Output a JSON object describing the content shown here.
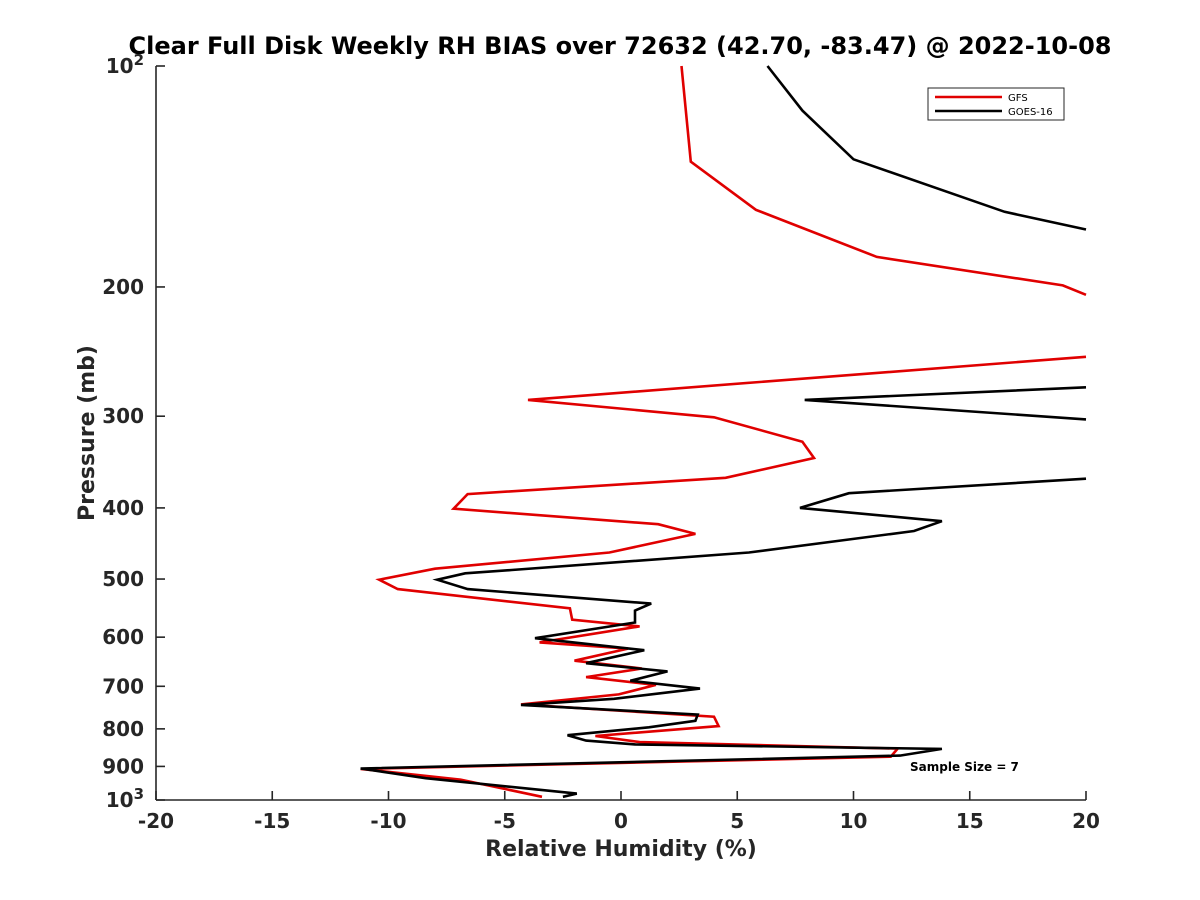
{
  "chart_data": {
    "type": "line",
    "title": "Clear Full Disk Weekly RH BIAS over 72632 (42.70, -83.47) @ 2022-10-08",
    "xlabel": "Relative Humidity (%)",
    "ylabel": "Pressure (mb)",
    "xlim": [
      -20,
      20
    ],
    "ylim": [
      100,
      1000
    ],
    "yscale": "log",
    "y_reversed": true,
    "grid": false,
    "legend_position": "top-right",
    "x_ticks": [
      "-20",
      "-15",
      "-10",
      "-5",
      "0",
      "5",
      "10",
      "15",
      "20"
    ],
    "y_ticks": [
      {
        "value": 100,
        "base": "10",
        "exp": "2"
      },
      {
        "value": 200,
        "label": "200"
      },
      {
        "value": 300,
        "label": "300"
      },
      {
        "value": 400,
        "label": "400"
      },
      {
        "value": 500,
        "label": "500"
      },
      {
        "value": 600,
        "label": "600"
      },
      {
        "value": 700,
        "label": "700"
      },
      {
        "value": 800,
        "label": "800"
      },
      {
        "value": 900,
        "label": "900"
      },
      {
        "value": 1000,
        "base": "10",
        "exp": "3"
      }
    ],
    "series": [
      {
        "name": "GFS",
        "color": "#e00000",
        "points": [
          [
            2.6,
            100
          ],
          [
            3.0,
            135
          ],
          [
            5.8,
            157
          ],
          [
            11.0,
            182
          ],
          [
            19.0,
            199
          ],
          [
            20.0,
            205
          ],
          [
            null,
            null
          ],
          [
            20.0,
            249
          ],
          [
            -4.0,
            285
          ],
          [
            4.0,
            301
          ],
          [
            7.8,
            325
          ],
          [
            8.3,
            342
          ],
          [
            4.5,
            364
          ],
          [
            -6.6,
            383
          ],
          [
            -7.2,
            401
          ],
          [
            1.6,
            421
          ],
          [
            3.2,
            434
          ],
          [
            -0.5,
            460
          ],
          [
            -8.0,
            484
          ],
          [
            -10.4,
            501
          ],
          [
            -9.6,
            516
          ],
          [
            -2.2,
            548
          ],
          [
            -2.1,
            568
          ],
          [
            0.8,
            580
          ],
          [
            -3.5,
            610
          ],
          [
            0.3,
            622
          ],
          [
            -2.0,
            646
          ],
          [
            0.9,
            662
          ],
          [
            -1.5,
            680
          ],
          [
            1.5,
            697
          ],
          [
            -0.1,
            718
          ],
          [
            -4.3,
            741
          ],
          [
            4.0,
            770
          ],
          [
            4.2,
            793
          ],
          [
            -1.1,
            818
          ],
          [
            0.8,
            834
          ],
          [
            11.9,
            851
          ],
          [
            11.6,
            873
          ],
          [
            -11.2,
            907
          ],
          [
            -6.9,
            938
          ],
          [
            -3.4,
            990
          ]
        ]
      },
      {
        "name": "GOES-16",
        "color": "#000000",
        "points": [
          [
            6.3,
            100
          ],
          [
            7.8,
            115
          ],
          [
            10.0,
            134
          ],
          [
            16.5,
            158
          ],
          [
            20.0,
            167
          ],
          [
            null,
            null
          ],
          [
            20.0,
            274
          ],
          [
            7.9,
            285
          ],
          [
            20.0,
            303
          ],
          [
            null,
            null
          ],
          [
            20.0,
            365
          ],
          [
            9.8,
            382
          ],
          [
            7.7,
            400
          ],
          [
            13.8,
            417
          ],
          [
            12.6,
            430
          ],
          [
            5.5,
            460
          ],
          [
            -4.7,
            486
          ],
          [
            -6.7,
            491
          ],
          [
            -7.9,
            501
          ],
          [
            -6.6,
            516
          ],
          [
            1.3,
            540
          ],
          [
            0.6,
            552
          ],
          [
            0.6,
            573
          ],
          [
            -3.7,
            602
          ],
          [
            1.0,
            625
          ],
          [
            -1.5,
            651
          ],
          [
            2.0,
            668
          ],
          [
            0.4,
            688
          ],
          [
            3.4,
            705
          ],
          [
            -0.3,
            728
          ],
          [
            -4.3,
            742
          ],
          [
            3.3,
            765
          ],
          [
            3.2,
            780
          ],
          [
            1.2,
            796
          ],
          [
            -2.3,
            816
          ],
          [
            -1.5,
            830
          ],
          [
            0.6,
            840
          ],
          [
            13.8,
            852
          ],
          [
            12.0,
            870
          ],
          [
            -11.2,
            906
          ],
          [
            -8.4,
            934
          ],
          [
            -1.9,
            980
          ],
          [
            -2.5,
            990
          ]
        ]
      }
    ],
    "annotations": [
      {
        "text": "Sample Size = 7"
      }
    ]
  }
}
